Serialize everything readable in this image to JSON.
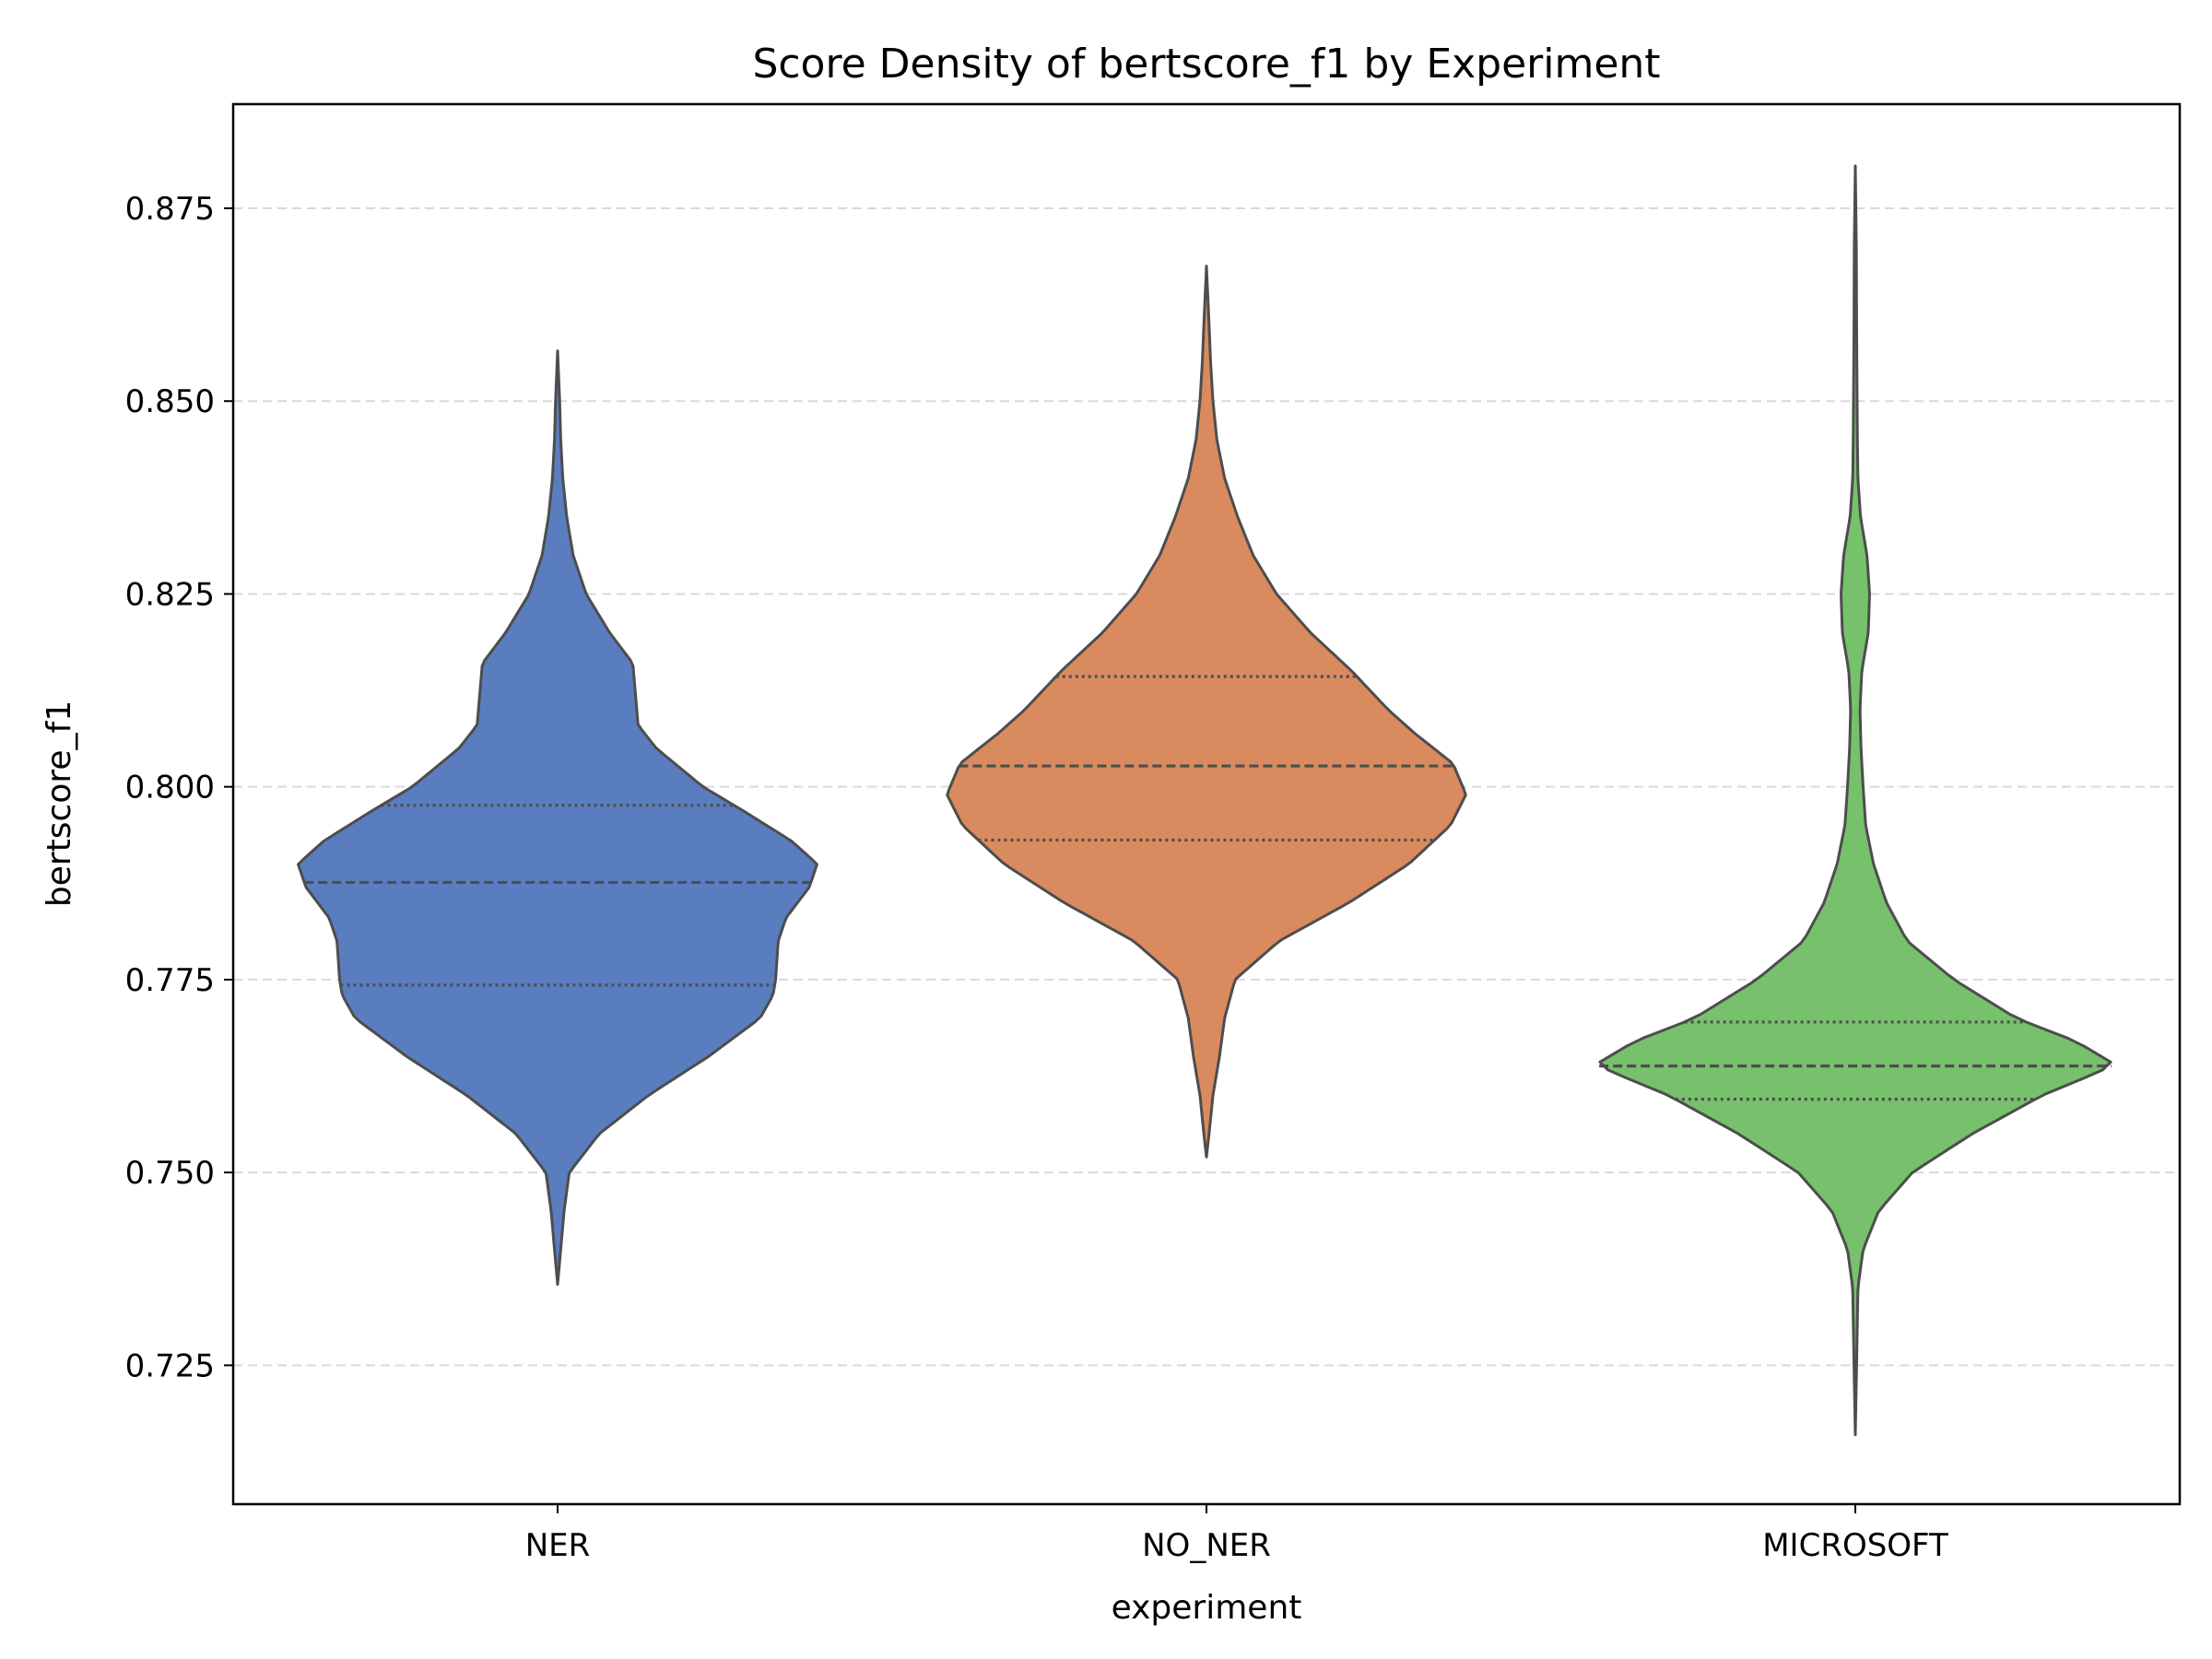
{
  "chart_data": {
    "type": "violin",
    "title": "Score Density of bertscore_f1 by Experiment",
    "xlabel": "experiment",
    "ylabel": "bertscore_f1",
    "categories": [
      "NER",
      "NO_NER",
      "MICROSOFT"
    ],
    "ylim": [
      0.707,
      0.8885
    ],
    "yticks": [
      0.725,
      0.75,
      0.775,
      0.8,
      0.825,
      0.85,
      0.875
    ],
    "ytick_labels": [
      "0.725",
      "0.750",
      "0.775",
      "0.800",
      "0.825",
      "0.850",
      "0.875"
    ],
    "grid": "horizontal, dashed",
    "legend": "none",
    "series": [
      {
        "name": "NER",
        "color": "#5a7dc0",
        "min": 0.7355,
        "max": 0.8565,
        "q1": 0.7743,
        "median": 0.7876,
        "q3": 0.7976,
        "density_profile": [
          [
            0.7355,
            0.0
          ],
          [
            0.74,
            0.012
          ],
          [
            0.745,
            0.025
          ],
          [
            0.75,
            0.045
          ],
          [
            0.755,
            0.16
          ],
          [
            0.76,
            0.35
          ],
          [
            0.765,
            0.58
          ],
          [
            0.77,
            0.78
          ],
          [
            0.773,
            0.83
          ],
          [
            0.775,
            0.84
          ],
          [
            0.78,
            0.85
          ],
          [
            0.783,
            0.88
          ],
          [
            0.787,
            0.97
          ],
          [
            0.79,
            1.0
          ],
          [
            0.793,
            0.9
          ],
          [
            0.797,
            0.71
          ],
          [
            0.8,
            0.56
          ],
          [
            0.805,
            0.38
          ],
          [
            0.808,
            0.31
          ],
          [
            0.812,
            0.3
          ],
          [
            0.816,
            0.29
          ],
          [
            0.82,
            0.2
          ],
          [
            0.825,
            0.11
          ],
          [
            0.83,
            0.06
          ],
          [
            0.835,
            0.035
          ],
          [
            0.84,
            0.02
          ],
          [
            0.845,
            0.012
          ],
          [
            0.85,
            0.008
          ],
          [
            0.8565,
            0.0
          ]
        ]
      },
      {
        "name": "NO_NER",
        "color": "#d98b5f",
        "min": 0.752,
        "max": 0.8675,
        "q1": 0.7931,
        "median": 0.8027,
        "q3": 0.8143,
        "density_profile": [
          [
            0.752,
            0.0
          ],
          [
            0.755,
            0.01
          ],
          [
            0.76,
            0.025
          ],
          [
            0.765,
            0.05
          ],
          [
            0.77,
            0.07
          ],
          [
            0.775,
            0.11
          ],
          [
            0.78,
            0.28
          ],
          [
            0.785,
            0.55
          ],
          [
            0.79,
            0.78
          ],
          [
            0.795,
            0.94
          ],
          [
            0.799,
            1.0
          ],
          [
            0.803,
            0.95
          ],
          [
            0.807,
            0.8
          ],
          [
            0.81,
            0.7
          ],
          [
            0.815,
            0.56
          ],
          [
            0.82,
            0.4
          ],
          [
            0.825,
            0.27
          ],
          [
            0.83,
            0.18
          ],
          [
            0.835,
            0.12
          ],
          [
            0.84,
            0.07
          ],
          [
            0.845,
            0.04
          ],
          [
            0.85,
            0.025
          ],
          [
            0.855,
            0.016
          ],
          [
            0.86,
            0.01
          ],
          [
            0.8675,
            0.0
          ]
        ]
      },
      {
        "name": "MICROSOFT",
        "color": "#77c16c",
        "min": 0.716,
        "max": 0.8805,
        "q1": 0.7595,
        "median": 0.7638,
        "q3": 0.7695,
        "density_profile": [
          [
            0.716,
            0.0
          ],
          [
            0.725,
            0.005
          ],
          [
            0.735,
            0.01
          ],
          [
            0.74,
            0.03
          ],
          [
            0.745,
            0.09
          ],
          [
            0.75,
            0.22
          ],
          [
            0.755,
            0.45
          ],
          [
            0.76,
            0.72
          ],
          [
            0.7625,
            0.9
          ],
          [
            0.764,
            1.0
          ],
          [
            0.767,
            0.85
          ],
          [
            0.77,
            0.62
          ],
          [
            0.775,
            0.38
          ],
          [
            0.78,
            0.2
          ],
          [
            0.785,
            0.12
          ],
          [
            0.79,
            0.07
          ],
          [
            0.795,
            0.04
          ],
          [
            0.8,
            0.03
          ],
          [
            0.805,
            0.022
          ],
          [
            0.81,
            0.018
          ],
          [
            0.815,
            0.025
          ],
          [
            0.82,
            0.05
          ],
          [
            0.825,
            0.055
          ],
          [
            0.83,
            0.045
          ],
          [
            0.835,
            0.02
          ],
          [
            0.84,
            0.01
          ],
          [
            0.845,
            0.008
          ],
          [
            0.85,
            0.007
          ],
          [
            0.86,
            0.005
          ],
          [
            0.87,
            0.004
          ],
          [
            0.8805,
            0.0
          ]
        ]
      }
    ],
    "style": {
      "outline_color": "#4d4d4d",
      "grid_color": "#d9d9d9",
      "axis_color": "#000000",
      "background": "#ffffff"
    }
  }
}
